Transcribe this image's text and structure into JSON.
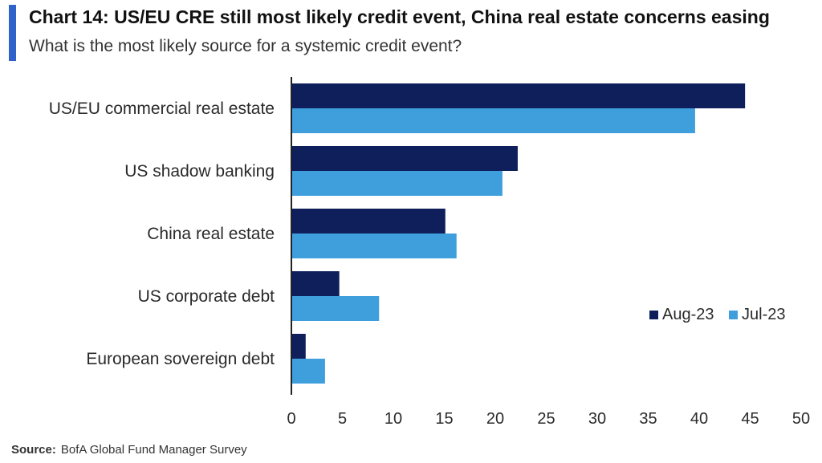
{
  "header": {
    "title": "Chart 14: US/EU CRE still most likely credit event, China real estate concerns easing",
    "subtitle": "What is the most likely source for a systemic credit event?"
  },
  "footer": {
    "source_label": "Source:",
    "source_text": "BofA Global Fund Manager Survey"
  },
  "colors": {
    "accent": "#2f63c9",
    "aug": "#0f1f5c",
    "jul": "#3f9fdc"
  },
  "chart_data": {
    "type": "bar",
    "orientation": "horizontal",
    "categories": [
      "US/EU commercial real estate",
      "US shadow banking",
      "China real estate",
      "US corporate debt",
      "European sovereign debt"
    ],
    "series": [
      {
        "name": "Aug-23",
        "values": [
          44.5,
          22.2,
          15.1,
          4.7,
          1.4
        ]
      },
      {
        "name": "Jul-23",
        "values": [
          39.6,
          20.7,
          16.2,
          8.6,
          3.3
        ]
      }
    ],
    "xlim": [
      0,
      50
    ],
    "xticks": [
      0,
      5,
      10,
      15,
      20,
      25,
      30,
      35,
      40,
      45,
      50
    ],
    "grid": false,
    "legend_position": "right"
  }
}
